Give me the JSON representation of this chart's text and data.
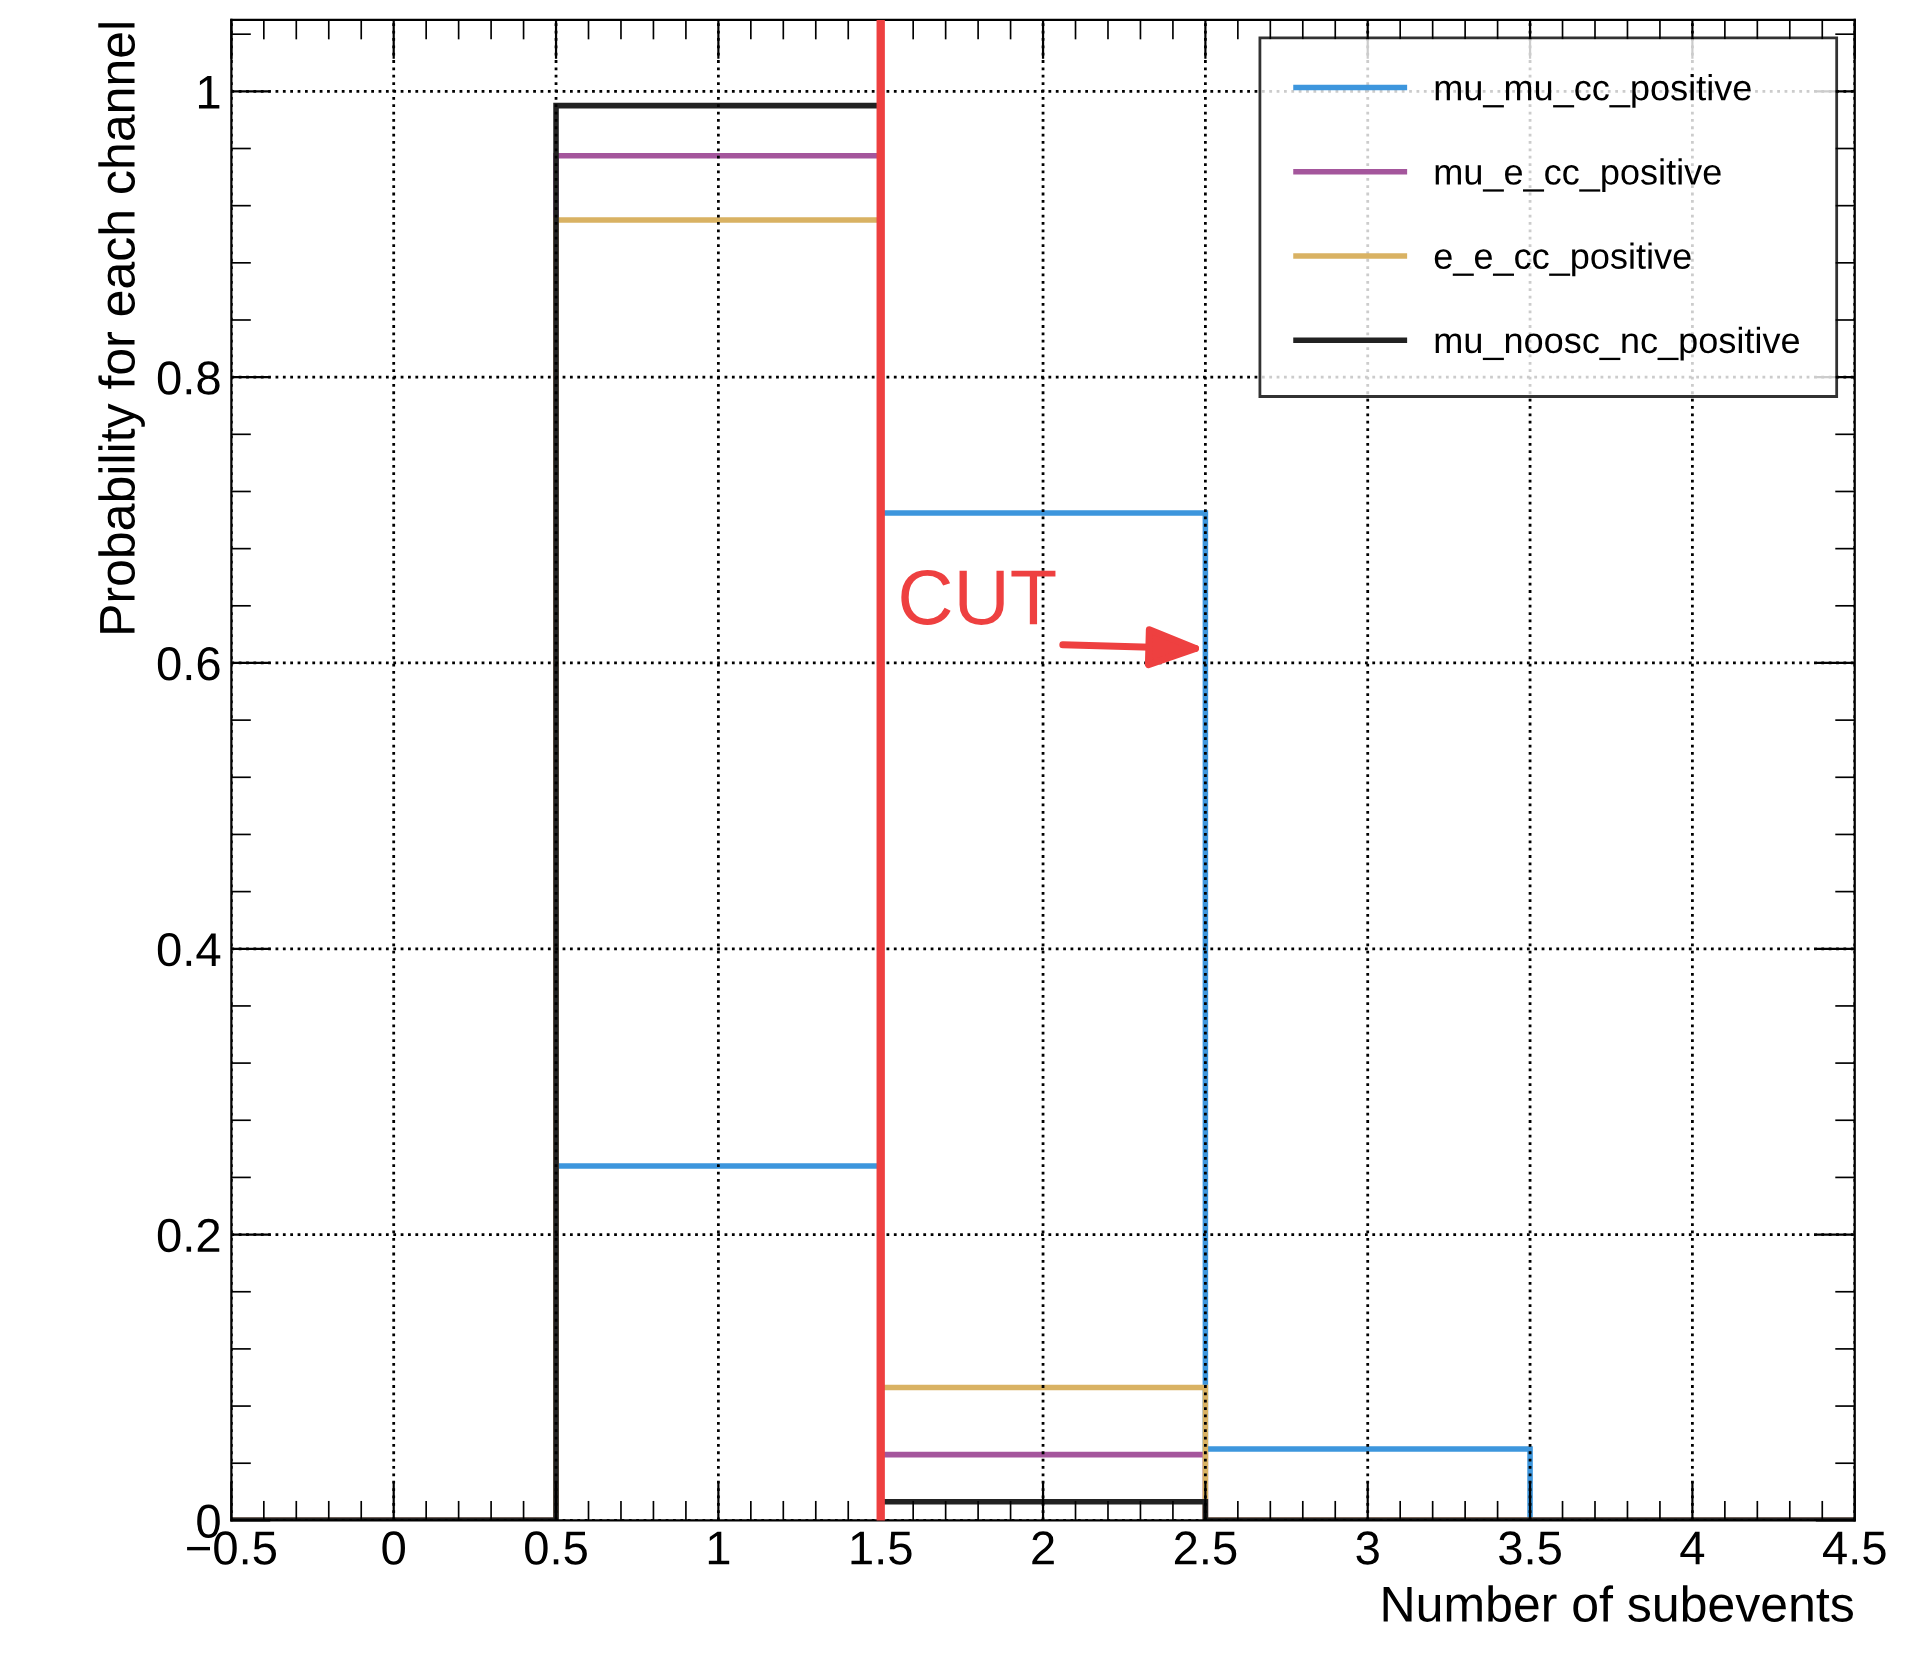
{
  "chart_data": {
    "type": "histogram",
    "xlabel": "Number of subevents",
    "ylabel": "Probability for each channel",
    "bins": [
      -0.5,
      0.5,
      1.5,
      2.5,
      3.5,
      4.5
    ],
    "series": [
      {
        "name": "mu_mu_cc_positive",
        "color": "#3d96dd",
        "values": [
          0,
          0.248,
          0.705,
          0.05,
          0
        ]
      },
      {
        "name": "mu_e_cc_positive",
        "color": "#a4569c",
        "values": [
          0,
          0.955,
          0.046,
          0,
          0
        ]
      },
      {
        "name": "e_e_cc_positive",
        "color": "#d9b263",
        "values": [
          0,
          0.91,
          0.093,
          0,
          0
        ]
      },
      {
        "name": "mu_noosc_nc_positive",
        "color": "#222222",
        "values": [
          0,
          0.99,
          0.013,
          0,
          0
        ]
      }
    ],
    "xlim": [
      -0.5,
      4.5
    ],
    "ylim": [
      0,
      1.05
    ],
    "xticks": [
      {
        "value": -0.5,
        "label": "−0.5"
      },
      0,
      0.5,
      1,
      1.5,
      2,
      2.5,
      3,
      3.5,
      4,
      4.5
    ],
    "yticks": [
      0,
      0.2,
      0.4,
      0.6,
      0.8,
      1
    ],
    "ref_lines": [
      {
        "axis": "x",
        "value": 1.5,
        "color": "#ee4040"
      }
    ],
    "annotations": [
      {
        "text": "CUT",
        "x": 2.5,
        "y": 0.61
      }
    ],
    "grid": true,
    "legend": "top right"
  }
}
